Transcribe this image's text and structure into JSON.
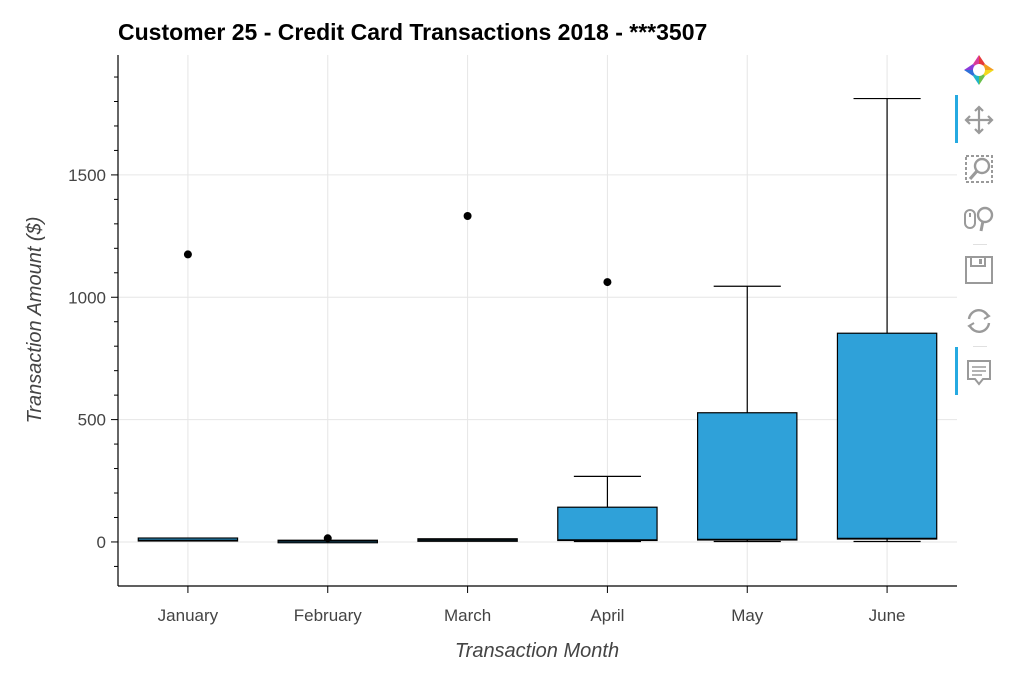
{
  "chart_data": {
    "type": "box",
    "title": "Customer 25 - Credit Card Transactions 2018 - ***3507",
    "xlabel": "Transaction Month",
    "ylabel": "Transaction Amount ($)",
    "categories": [
      "January",
      "February",
      "March",
      "April",
      "May",
      "June"
    ],
    "ylim": [
      -180,
      1990
    ],
    "yticks": [
      0,
      500,
      1000,
      1500
    ],
    "ytick_labels": [
      "0",
      "500",
      "1000",
      "1500"
    ],
    "grid": true,
    "box_color": "#2fa1d9",
    "boxes": [
      {
        "category": "January",
        "q1": 4,
        "median": 6,
        "q3": 16,
        "lower": 4,
        "upper": 16,
        "outliers": [
          1175
        ]
      },
      {
        "category": "February",
        "q1": 2,
        "median": 4,
        "q3": 7,
        "lower": 2,
        "upper": 7,
        "outliers": [
          15
        ]
      },
      {
        "category": "March",
        "q1": 5,
        "median": 8,
        "q3": 13,
        "lower": 5,
        "upper": 13,
        "outliers": [
          1332
        ]
      },
      {
        "category": "April",
        "q1": 6,
        "median": 8,
        "q3": 142,
        "lower": 2,
        "upper": 268,
        "outliers": [
          1062
        ]
      },
      {
        "category": "May",
        "q1": 8,
        "median": 10,
        "q3": 528,
        "lower": 2,
        "upper": 1045,
        "outliers": []
      },
      {
        "category": "June",
        "q1": 12,
        "median": 14,
        "q3": 853,
        "lower": 2,
        "upper": 1812,
        "outliers": []
      }
    ]
  },
  "toolbar": {
    "tools": [
      {
        "name": "bokeh-logo-icon",
        "active": false
      },
      {
        "name": "pan-icon",
        "active": true
      },
      {
        "name": "box-zoom-icon",
        "active": false
      },
      {
        "name": "wheel-zoom-icon",
        "active": false
      },
      {
        "name": "save-icon",
        "active": false
      },
      {
        "name": "reset-icon",
        "active": false
      },
      {
        "name": "hover-icon",
        "active": true
      }
    ]
  }
}
